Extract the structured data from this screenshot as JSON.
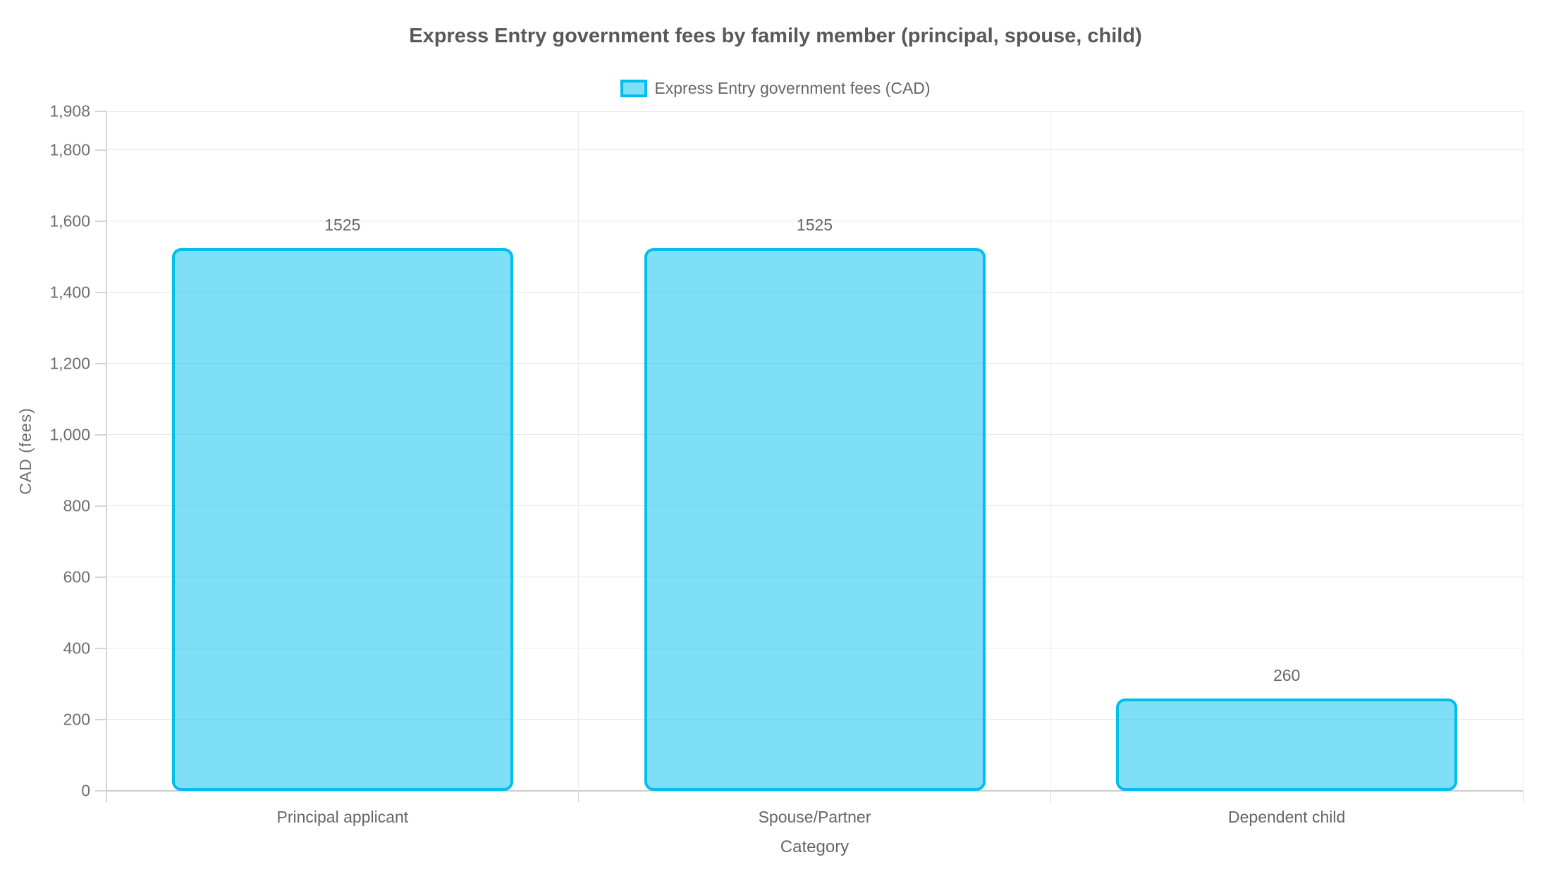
{
  "chart_data": {
    "type": "bar",
    "title": "Express Entry government fees by family member (principal, spouse, child)",
    "legend": {
      "position": "top",
      "entries": [
        {
          "label": "Express Entry government fees (CAD)"
        }
      ]
    },
    "categories": [
      "Principal applicant",
      "Spouse/Partner",
      "Dependent child"
    ],
    "series": [
      {
        "name": "Express Entry government fees (CAD)",
        "values": [
          1525,
          1525,
          260
        ]
      }
    ],
    "value_labels": [
      "1525",
      "1525",
      "260"
    ],
    "xlabel": "Category",
    "ylabel": "CAD (fees)",
    "ylim": [
      0,
      1908
    ],
    "yticks": [
      {
        "value": 0,
        "label": "0"
      },
      {
        "value": 200,
        "label": "200"
      },
      {
        "value": 400,
        "label": "400"
      },
      {
        "value": 600,
        "label": "600"
      },
      {
        "value": 800,
        "label": "800"
      },
      {
        "value": 1000,
        "label": "1,000"
      },
      {
        "value": 1200,
        "label": "1,200"
      },
      {
        "value": 1400,
        "label": "1,400"
      },
      {
        "value": 1600,
        "label": "1,600"
      },
      {
        "value": 1800,
        "label": "1,800"
      },
      {
        "value": 1908,
        "label": "1,908"
      }
    ],
    "grid": true,
    "colors": {
      "bar_border": "#00bfef",
      "bar_fill": "rgba(0, 191, 239, 0.5)",
      "grid_line": "#e8e8e8",
      "axis_line": "#cccccc",
      "title_text": "#595959",
      "label_text": "#666666"
    }
  }
}
